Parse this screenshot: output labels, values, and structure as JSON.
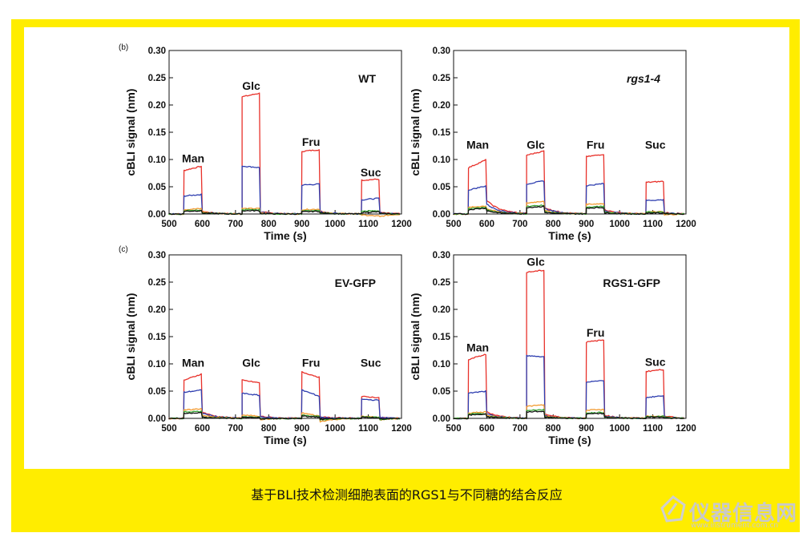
{
  "caption": "基于BLI技术检测细胞表面的RGS1与不同糖的结合反应",
  "watermark": {
    "name": "仪器信息网",
    "url": "www.instrument.com.cn"
  },
  "panel_letters": {
    "top": "(b)",
    "bottom": "(c)"
  },
  "colors": {
    "frame": "#ffed00",
    "red": "#e8312a",
    "blue": "#2f3fb0",
    "orange": "#f29a30",
    "green": "#3aa535",
    "black": "#111111"
  },
  "chart_data": [
    {
      "type": "line",
      "title": "WT",
      "title_italic": false,
      "xlabel": "Time (s)",
      "ylabel": "cBLI signal (nm)",
      "xlim": [
        500,
        1200
      ],
      "ylim": [
        0,
        0.3
      ],
      "xticks": [
        "500",
        "600",
        "700",
        "800",
        "900",
        "1000",
        "1100",
        "1200"
      ],
      "yticks": [
        "0.00",
        "0.05",
        "0.10",
        "0.15",
        "0.20",
        "0.25",
        "0.30"
      ],
      "injections": [
        {
          "label": "Man",
          "start": 545,
          "end": 600,
          "label_y": 0.095
        },
        {
          "label": "Glc",
          "start": 720,
          "end": 775,
          "label_y": 0.228
        },
        {
          "label": "Fru",
          "start": 900,
          "end": 955,
          "label_y": 0.125
        },
        {
          "label": "Suc",
          "start": 1080,
          "end": 1135,
          "label_y": 0.069
        }
      ],
      "series": [
        {
          "name": "red",
          "color": "red",
          "start": [
            0.08,
            0.215,
            0.115,
            0.062
          ],
          "end": [
            0.088,
            0.222,
            0.118,
            0.064
          ],
          "after": [
            0.005,
            0.004,
            0.005,
            0.003
          ]
        },
        {
          "name": "blue",
          "color": "blue",
          "start": [
            0.033,
            0.088,
            0.053,
            0.026
          ],
          "end": [
            0.036,
            0.085,
            0.055,
            0.029
          ],
          "after": [
            0.004,
            0.003,
            0.004,
            0.002
          ]
        },
        {
          "name": "orange",
          "color": "orange",
          "start": [
            0.008,
            0.01,
            0.008,
            -0.002
          ],
          "end": [
            0.01,
            0.01,
            0.009,
            -0.004
          ],
          "after": [
            0.004,
            0.002,
            0.003,
            -0.005
          ]
        },
        {
          "name": "green",
          "color": "green",
          "start": [
            0.006,
            0.008,
            0.006,
            0.005
          ],
          "end": [
            0.007,
            0.008,
            0.006,
            0.006
          ],
          "after": [
            0.002,
            0.001,
            0.002,
            0.001
          ]
        },
        {
          "name": "black",
          "color": "black",
          "start": [
            0.005,
            0.006,
            0.004,
            0.003
          ],
          "end": [
            0.006,
            0.006,
            0.005,
            0.004
          ],
          "after": [
            0.002,
            0.001,
            0.002,
            0.001
          ]
        }
      ]
    },
    {
      "type": "line",
      "title": "rgs1-4",
      "title_italic": true,
      "xlabel": "Time (s)",
      "ylabel": "cBLI signal (nm)",
      "xlim": [
        500,
        1200
      ],
      "ylim": [
        0,
        0.3
      ],
      "xticks": [
        "500",
        "600",
        "700",
        "800",
        "900",
        "1000",
        "1100",
        "1200"
      ],
      "yticks": [
        "0.00",
        "0.05",
        "0.10",
        "0.15",
        "0.20",
        "0.25",
        "0.30"
      ],
      "injections": [
        {
          "label": "Man",
          "start": 545,
          "end": 600,
          "label_y": 0.12
        },
        {
          "label": "Glc",
          "start": 720,
          "end": 775,
          "label_y": 0.12
        },
        {
          "label": "Fru",
          "start": 900,
          "end": 955,
          "label_y": 0.12
        },
        {
          "label": "Suc",
          "start": 1080,
          "end": 1135,
          "label_y": 0.12
        }
      ],
      "series": [
        {
          "name": "red",
          "color": "red",
          "start": [
            0.085,
            0.108,
            0.105,
            0.058
          ],
          "end": [
            0.1,
            0.116,
            0.11,
            0.06
          ],
          "after": [
            0.025,
            0.012,
            0.008,
            0.003
          ]
        },
        {
          "name": "blue",
          "color": "blue",
          "start": [
            0.044,
            0.055,
            0.052,
            0.025
          ],
          "end": [
            0.052,
            0.061,
            0.056,
            0.026
          ],
          "after": [
            0.018,
            0.01,
            0.006,
            0.002
          ]
        },
        {
          "name": "orange",
          "color": "orange",
          "start": [
            0.012,
            0.02,
            0.018,
            0.004
          ],
          "end": [
            0.015,
            0.024,
            0.019,
            0.004
          ],
          "after": [
            0.01,
            0.006,
            0.004,
            -0.002
          ]
        },
        {
          "name": "green",
          "color": "green",
          "start": [
            0.01,
            0.014,
            0.013,
            0.004
          ],
          "end": [
            0.012,
            0.016,
            0.014,
            0.003
          ],
          "after": [
            0.008,
            0.004,
            0.003,
            0.001
          ]
        },
        {
          "name": "black",
          "color": "black",
          "start": [
            0.008,
            0.012,
            0.011,
            0.002
          ],
          "end": [
            0.011,
            0.014,
            0.012,
            0.002
          ],
          "after": [
            0.006,
            0.003,
            0.002,
            0.001
          ]
        }
      ]
    },
    {
      "type": "line",
      "title": "EV-GFP",
      "title_italic": false,
      "xlabel": "Time (s)",
      "ylabel": "cBLI signal (nm)",
      "xlim": [
        500,
        1200
      ],
      "ylim": [
        0,
        0.3
      ],
      "xticks": [
        "500",
        "600",
        "700",
        "800",
        "900",
        "1000",
        "1100",
        "1200"
      ],
      "yticks": [
        "0.00",
        "0.05",
        "0.10",
        "0.15",
        "0.20",
        "0.25",
        "0.30"
      ],
      "injections": [
        {
          "label": "Man",
          "start": 545,
          "end": 600,
          "label_y": 0.095
        },
        {
          "label": "Glc",
          "start": 720,
          "end": 775,
          "label_y": 0.095
        },
        {
          "label": "Fru",
          "start": 900,
          "end": 955,
          "label_y": 0.095
        },
        {
          "label": "Suc",
          "start": 1080,
          "end": 1135,
          "label_y": 0.095
        }
      ],
      "series": [
        {
          "name": "red",
          "color": "red",
          "start": [
            0.07,
            0.07,
            0.085,
            0.04
          ],
          "end": [
            0.082,
            0.065,
            0.075,
            0.038
          ],
          "after": [
            0.012,
            0.004,
            0.003,
            0.002
          ]
        },
        {
          "name": "blue",
          "color": "blue",
          "start": [
            0.048,
            0.046,
            0.052,
            0.035
          ],
          "end": [
            0.052,
            0.042,
            0.04,
            0.033
          ],
          "after": [
            0.01,
            0.003,
            0.002,
            0.002
          ]
        },
        {
          "name": "orange",
          "color": "orange",
          "start": [
            0.015,
            0.006,
            0.01,
            0.004
          ],
          "end": [
            0.018,
            0.004,
            0.004,
            0.002
          ],
          "after": [
            0.006,
            -0.002,
            -0.006,
            -0.003
          ]
        },
        {
          "name": "green",
          "color": "green",
          "start": [
            0.012,
            0.003,
            0.006,
            0.003
          ],
          "end": [
            0.013,
            0.002,
            0.003,
            0.002
          ],
          "after": [
            0.003,
            -0.001,
            -0.003,
            -0.002
          ]
        },
        {
          "name": "black",
          "color": "black",
          "start": [
            0.009,
            0.002,
            0.004,
            0.002
          ],
          "end": [
            0.011,
            0.001,
            0.002,
            0.001
          ],
          "after": [
            0.002,
            -0.001,
            -0.002,
            -0.001
          ]
        }
      ]
    },
    {
      "type": "line",
      "title": "RGS1-GFP",
      "title_italic": false,
      "xlabel": "Time (s)",
      "ylabel": "cBLI signal (nm)",
      "xlim": [
        500,
        1200
      ],
      "ylim": [
        0,
        0.3
      ],
      "xticks": [
        "500",
        "600",
        "700",
        "800",
        "900",
        "1000",
        "1100",
        "1200"
      ],
      "yticks": [
        "0.00",
        "0.05",
        "0.10",
        "0.15",
        "0.20",
        "0.25",
        "0.30"
      ],
      "injections": [
        {
          "label": "Man",
          "start": 545,
          "end": 600,
          "label_y": 0.123
        },
        {
          "label": "Glc",
          "start": 720,
          "end": 775,
          "label_y": 0.28
        },
        {
          "label": "Fru",
          "start": 900,
          "end": 955,
          "label_y": 0.15
        },
        {
          "label": "Suc",
          "start": 1080,
          "end": 1135,
          "label_y": 0.096
        }
      ],
      "series": [
        {
          "name": "red",
          "color": "red",
          "start": [
            0.108,
            0.268,
            0.14,
            0.086
          ],
          "end": [
            0.118,
            0.272,
            0.144,
            0.09
          ],
          "after": [
            0.012,
            0.008,
            0.006,
            0.005
          ]
        },
        {
          "name": "blue",
          "color": "blue",
          "start": [
            0.046,
            0.115,
            0.066,
            0.038
          ],
          "end": [
            0.05,
            0.113,
            0.07,
            0.042
          ],
          "after": [
            0.008,
            0.005,
            0.004,
            0.003
          ]
        },
        {
          "name": "orange",
          "color": "orange",
          "start": [
            0.01,
            0.022,
            0.015,
            0.004
          ],
          "end": [
            0.012,
            0.025,
            0.016,
            0.004
          ],
          "after": [
            0.006,
            0.004,
            0.003,
            0.002
          ]
        },
        {
          "name": "green",
          "color": "green",
          "start": [
            0.008,
            0.015,
            0.01,
            0.003
          ],
          "end": [
            0.009,
            0.016,
            0.011,
            0.004
          ],
          "after": [
            0.004,
            0.003,
            0.002,
            0.002
          ]
        },
        {
          "name": "black",
          "color": "black",
          "start": [
            0.006,
            0.012,
            0.008,
            0.002
          ],
          "end": [
            0.008,
            0.013,
            0.009,
            0.003
          ],
          "after": [
            0.003,
            0.002,
            0.002,
            0.001
          ]
        }
      ]
    }
  ]
}
